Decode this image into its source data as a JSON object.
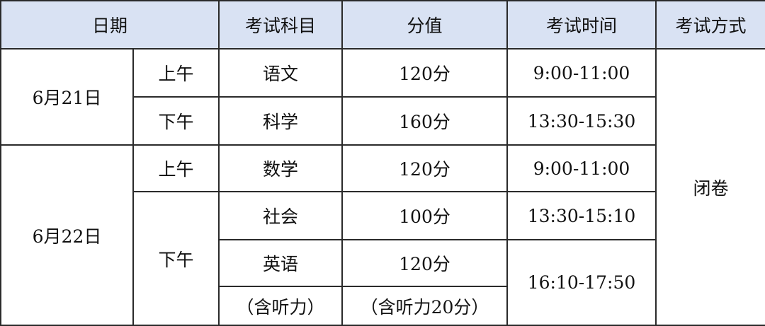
{
  "header": {
    "date": "日期",
    "subject": "考试科目",
    "score": "分值",
    "time": "考试时间",
    "mode": "考试方式"
  },
  "mode_value": "闭卷",
  "days": [
    {
      "date": "6月21日",
      "sessions": [
        {
          "period": "上午",
          "subject": "语文",
          "score": "120分",
          "time": "9:00-11:00"
        },
        {
          "period": "下午",
          "subject": "科学",
          "score": "160分",
          "time": "13:30-15:30"
        }
      ]
    },
    {
      "date": "6月22日",
      "sessions": [
        {
          "period": "上午",
          "subject": "数学",
          "score": "120分",
          "time": "9:00-11:00"
        },
        {
          "period": "下午",
          "subject": "社会",
          "score": "100分",
          "time": "13:30-15:10"
        },
        {
          "subject": "英语",
          "score": "120分",
          "time": "16:10-17:50"
        },
        {
          "subject": "（含听力）",
          "score": "（含听力20分）"
        }
      ]
    }
  ],
  "colors": {
    "header_bg": "#d9e2f3",
    "border": "#2a2a2a"
  }
}
